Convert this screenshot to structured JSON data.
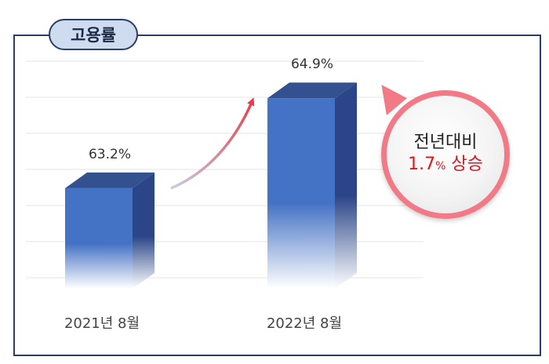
{
  "badge": {
    "label": "고용률"
  },
  "chart_data": {
    "type": "bar",
    "title": "고용률",
    "categories": [
      "2021년 8월",
      "2022년 8월"
    ],
    "values": [
      63.2,
      64.9
    ],
    "value_labels": [
      "63.2%",
      "64.9%"
    ],
    "ylim": [
      61.3,
      65.6
    ],
    "grid": true,
    "annotation": {
      "prefix": "전년대비",
      "value": "1.7",
      "unit": "%",
      "suffix": "상승"
    },
    "colors": {
      "bar_front": "#4472c4",
      "bar_side": "#2b4588",
      "bar_top": "#33508f"
    }
  }
}
